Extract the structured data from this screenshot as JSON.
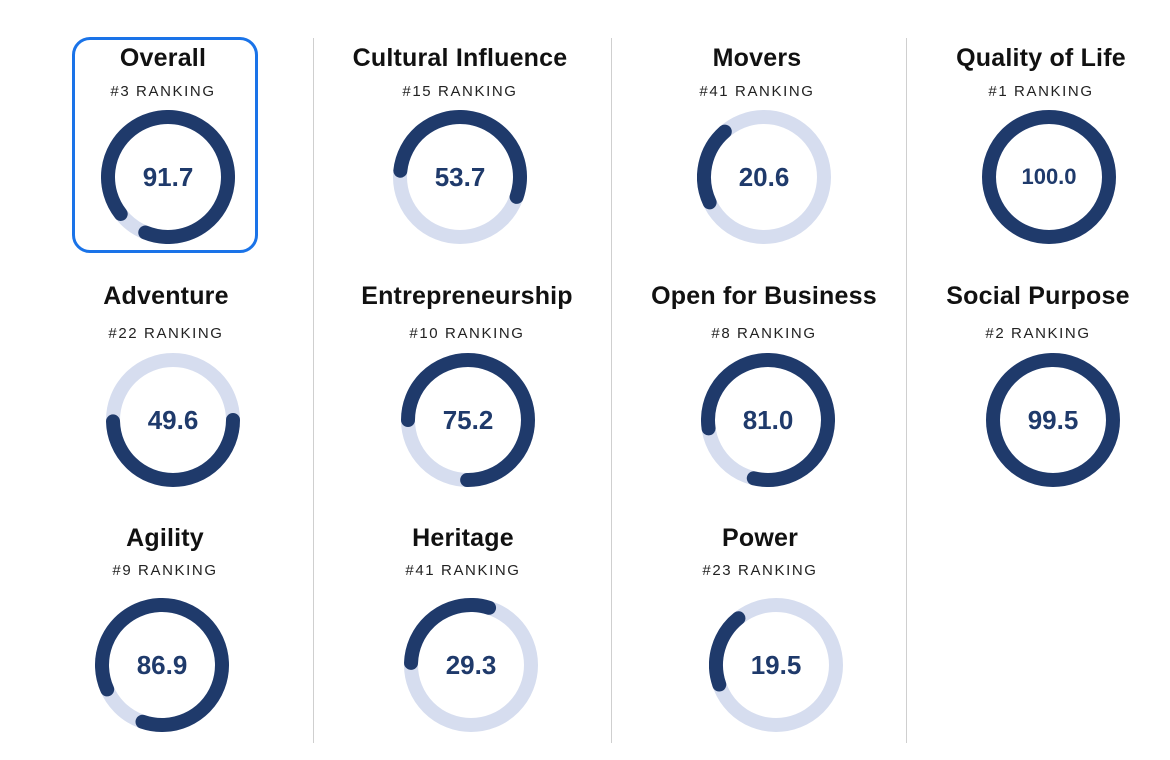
{
  "colors": {
    "track": "#d6ddef",
    "progress": "#1f3a6b",
    "selected_border": "#1a73e8",
    "divider": "#cfcfcf"
  },
  "cards": [
    {
      "title": "Overall",
      "rank": "#3 RANKING",
      "score": "91.7",
      "fraction": 0.917,
      "selected": true
    },
    {
      "title": "Cultural Influence",
      "rank": "#15 RANKING",
      "score": "53.7",
      "fraction": 0.537
    },
    {
      "title": "Movers",
      "rank": "#41 RANKING",
      "score": "20.6",
      "fraction": 0.206
    },
    {
      "title": "Quality of Life",
      "rank": "#1 RANKING",
      "score": "100.0",
      "fraction": 1.0
    },
    {
      "title": "Adventure",
      "rank": "#22 RANKING",
      "score": "49.6",
      "fraction": 0.496
    },
    {
      "title": "Entrepreneurship",
      "rank": "#10 RANKING",
      "score": "75.2",
      "fraction": 0.752
    },
    {
      "title": "Open for Business",
      "rank": "#8 RANKING",
      "score": "81.0",
      "fraction": 0.81
    },
    {
      "title": "Social Purpose",
      "rank": "#2 RANKING",
      "score": "99.5",
      "fraction": 0.995
    },
    {
      "title": "Agility",
      "rank": "#9 RANKING",
      "score": "86.9",
      "fraction": 0.869
    },
    {
      "title": "Heritage",
      "rank": "#41 RANKING",
      "score": "29.3",
      "fraction": 0.293
    },
    {
      "title": "Power",
      "rank": "#23 RANKING",
      "score": "19.5",
      "fraction": 0.195
    }
  ]
}
